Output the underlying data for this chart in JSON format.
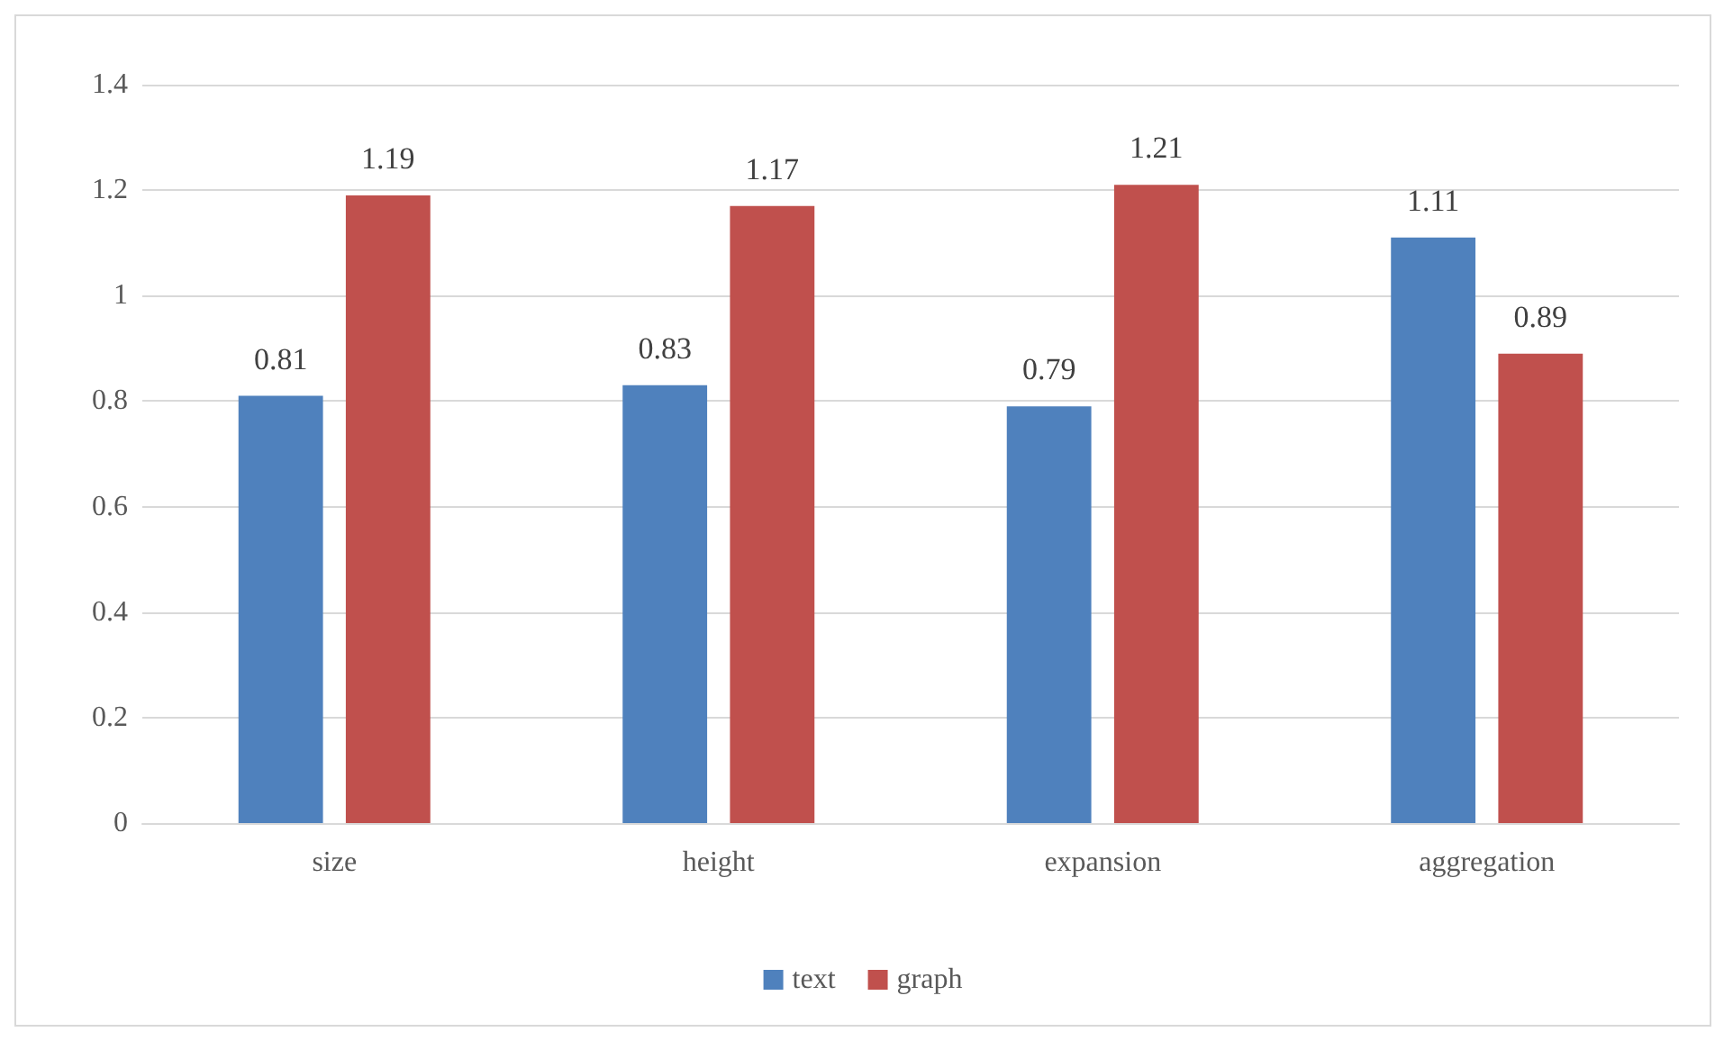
{
  "chart_data": {
    "type": "bar",
    "categories": [
      "size",
      "height",
      "expansion",
      "aggregation"
    ],
    "series": [
      {
        "name": "text",
        "color": "#4f81bd",
        "values": [
          0.81,
          0.83,
          0.79,
          1.11
        ]
      },
      {
        "name": "graph",
        "color": "#c0504d",
        "values": [
          1.19,
          1.17,
          1.21,
          0.89
        ]
      }
    ],
    "ylim": [
      0,
      1.4
    ],
    "yticks": [
      0,
      0.2,
      0.4,
      0.6,
      0.8,
      1,
      1.2,
      1.4
    ],
    "grid": "y",
    "legend": "bottom",
    "data_labels": true
  }
}
